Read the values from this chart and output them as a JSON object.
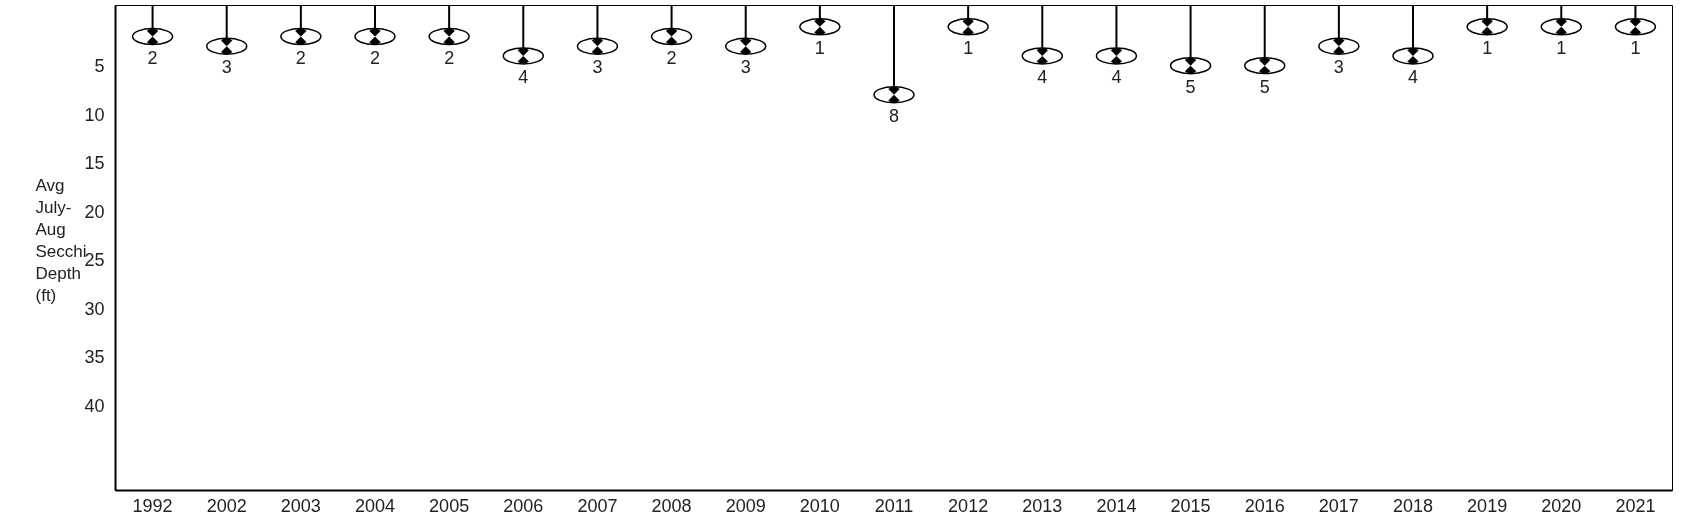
{
  "chart_data": {
    "type": "lollipop",
    "ylabel": "Avg July-Aug Secchi Depth (ft)",
    "categories": [
      "1992",
      "2002",
      "2003",
      "2004",
      "2005",
      "2006",
      "2007",
      "2008",
      "2009",
      "2010",
      "2011",
      "2012",
      "2013",
      "2014",
      "2015",
      "2016",
      "2017",
      "2018",
      "2019",
      "2020",
      "2021"
    ],
    "values": [
      2,
      3,
      2,
      2,
      2,
      4,
      3,
      2,
      3,
      1,
      8,
      1,
      4,
      4,
      5,
      5,
      3,
      4,
      1,
      1,
      1
    ],
    "color": "#000000",
    "data_labels": true,
    "ylim": [
      48.8,
      -1.2
    ],
    "yticks": [
      5,
      10,
      15,
      20,
      25,
      30,
      35,
      40
    ],
    "grid": false
  }
}
